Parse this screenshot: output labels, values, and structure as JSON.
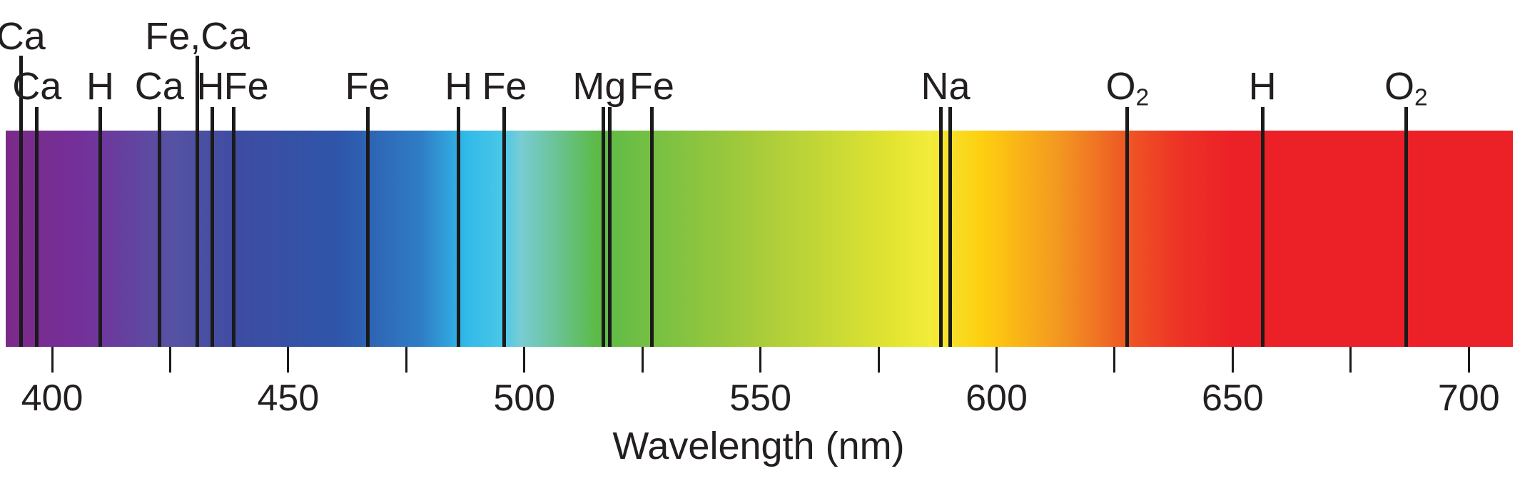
{
  "chart_data": {
    "type": "spectrum",
    "title": "",
    "xlabel": "Wavelength (nm)",
    "x_axis": {
      "unit": "nm",
      "range_nm": [
        390,
        710
      ],
      "major_ticks_nm": [
        400,
        450,
        500,
        550,
        600,
        650,
        700
      ],
      "major_tick_labels": [
        "400",
        "450",
        "500",
        "550",
        "600",
        "650",
        "700"
      ],
      "minor_ticks_nm": [
        425,
        475,
        525,
        575,
        625,
        675
      ],
      "grid": false
    },
    "absorption_lines": [
      {
        "label": "Ca",
        "wavelengths_nm": [
          393.4
        ],
        "label_row": "upper"
      },
      {
        "label": "Ca",
        "wavelengths_nm": [
          396.8
        ],
        "label_row": "lower"
      },
      {
        "label": "H",
        "wavelengths_nm": [
          410.2
        ],
        "label_row": "lower"
      },
      {
        "label": "Ca",
        "wavelengths_nm": [
          422.7
        ],
        "label_row": "lower"
      },
      {
        "label": "Fe,Ca",
        "wavelengths_nm": [
          430.8
        ],
        "label_row": "upper"
      },
      {
        "label": "H",
        "wavelengths_nm": [
          434.0
        ],
        "label_row": "lower",
        "label_dx": -3
      },
      {
        "label": "Fe",
        "wavelengths_nm": [
          438.4
        ],
        "label_row": "lower",
        "label_dx": 18
      },
      {
        "label": "Fe",
        "wavelengths_nm": [
          466.8
        ],
        "label_row": "lower"
      },
      {
        "label": "H",
        "wavelengths_nm": [
          486.1
        ],
        "label_row": "lower"
      },
      {
        "label": "Fe",
        "wavelengths_nm": [
          495.8
        ],
        "label_row": "lower"
      },
      {
        "label": "Mg",
        "wavelengths_nm": [
          516.7,
          518.1
        ],
        "label_row": "lower",
        "label_dx": -10
      },
      {
        "label": "Fe",
        "wavelengths_nm": [
          527.0
        ],
        "label_row": "lower"
      },
      {
        "label": "Na",
        "wavelengths_nm": [
          588.2,
          590.2
        ],
        "label_row": "lower"
      },
      {
        "label": "O2",
        "wavelengths_nm": [
          627.7
        ],
        "label_row": "lower",
        "label_base": "O",
        "label_sub": "2"
      },
      {
        "label": "H",
        "wavelengths_nm": [
          656.3
        ],
        "label_row": "lower"
      },
      {
        "label": "O2",
        "wavelengths_nm": [
          686.7
        ],
        "label_row": "lower",
        "label_base": "O",
        "label_sub": "2"
      }
    ],
    "gradient_stops": [
      {
        "pos": 0.0,
        "color": "#7C2A88"
      },
      {
        "pos": 5.0,
        "color": "#74309A"
      },
      {
        "pos": 11.0,
        "color": "#5652A3"
      },
      {
        "pos": 15.5,
        "color": "#3D4CA2"
      },
      {
        "pos": 22.0,
        "color": "#2E55A9"
      },
      {
        "pos": 27.5,
        "color": "#2F7CC5"
      },
      {
        "pos": 30.5,
        "color": "#31B9E9"
      },
      {
        "pos": 33.0,
        "color": "#49C8E8"
      },
      {
        "pos": 34.2,
        "color": "#79CCD3"
      },
      {
        "pos": 36.3,
        "color": "#6CC49C"
      },
      {
        "pos": 39.2,
        "color": "#5CBA47"
      },
      {
        "pos": 49.4,
        "color": "#A4CA3B"
      },
      {
        "pos": 58.9,
        "color": "#E3E431"
      },
      {
        "pos": 61.3,
        "color": "#F2EC3A"
      },
      {
        "pos": 64.5,
        "color": "#FDD112"
      },
      {
        "pos": 66.0,
        "color": "#FCC213"
      },
      {
        "pos": 70.3,
        "color": "#F29222"
      },
      {
        "pos": 74.1,
        "color": "#EE5A24"
      },
      {
        "pos": 78.0,
        "color": "#ED3226"
      },
      {
        "pos": 81.2,
        "color": "#EC2127"
      },
      {
        "pos": 100.0,
        "color": "#EC2127"
      }
    ],
    "line_color": "#1a1a1a",
    "text_color": "#231F20"
  }
}
